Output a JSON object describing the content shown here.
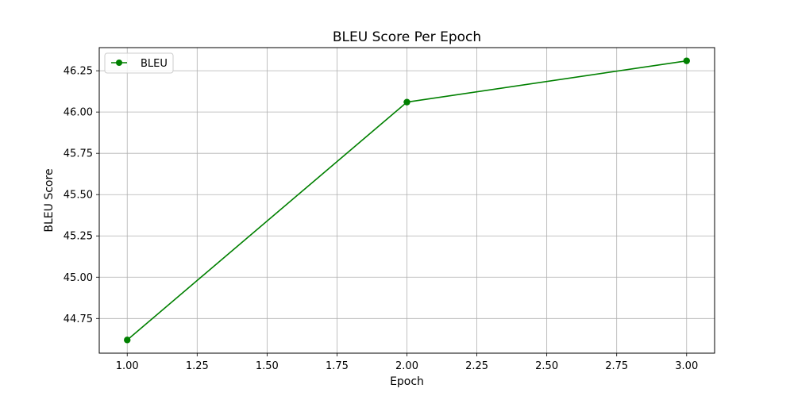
{
  "chart_data": {
    "type": "line",
    "title": "BLEU Score Per Epoch",
    "xlabel": "Epoch",
    "ylabel": "BLEU Score",
    "xlim": [
      0.9,
      3.1
    ],
    "ylim": [
      44.54,
      46.39
    ],
    "x_ticks": [
      1.0,
      1.25,
      1.5,
      1.75,
      2.0,
      2.25,
      2.5,
      2.75,
      3.0
    ],
    "x_tick_labels": [
      "1.00",
      "1.25",
      "1.50",
      "1.75",
      "2.00",
      "2.25",
      "2.50",
      "2.75",
      "3.00"
    ],
    "y_ticks": [
      44.75,
      45.0,
      45.25,
      45.5,
      45.75,
      46.0,
      46.25
    ],
    "y_tick_labels": [
      "44.75",
      "45.00",
      "45.25",
      "45.50",
      "45.75",
      "46.00",
      "46.25"
    ],
    "grid": true,
    "legend_position": "top-left",
    "series": [
      {
        "name": "BLEU",
        "color": "#008000",
        "marker": "circle",
        "x": [
          1,
          2,
          3
        ],
        "y": [
          44.62,
          46.06,
          46.31
        ]
      }
    ]
  }
}
